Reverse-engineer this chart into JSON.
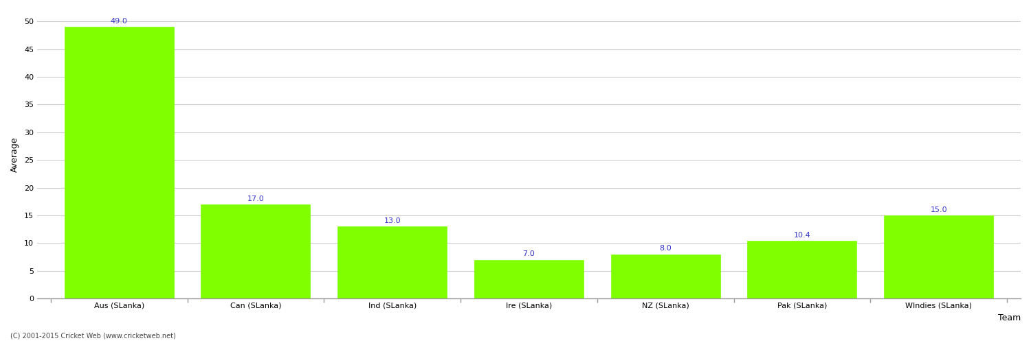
{
  "categories": [
    "Aus (SLanka)",
    "Can (SLanka)",
    "Ind (SLanka)",
    "Ire (SLanka)",
    "NZ (SLanka)",
    "Pak (SLanka)",
    "WIndies (SLanka)"
  ],
  "values": [
    49.0,
    17.0,
    13.0,
    7.0,
    8.0,
    10.4,
    15.0
  ],
  "bar_color": "#7fff00",
  "bar_edge_color": "#7fff00",
  "label_color": "#3333cc",
  "ylabel": "Average",
  "xlabel": "Team",
  "ylim": [
    0,
    52
  ],
  "yticks": [
    0,
    5,
    10,
    15,
    20,
    25,
    30,
    35,
    40,
    45,
    50
  ],
  "background_color": "#ffffff",
  "grid_color": "#cccccc",
  "footer": "(C) 2001-2015 Cricket Web (www.cricketweb.net)",
  "label_fontsize": 8,
  "axis_label_fontsize": 9,
  "tick_fontsize": 8,
  "footer_fontsize": 7,
  "bar_width": 0.8
}
